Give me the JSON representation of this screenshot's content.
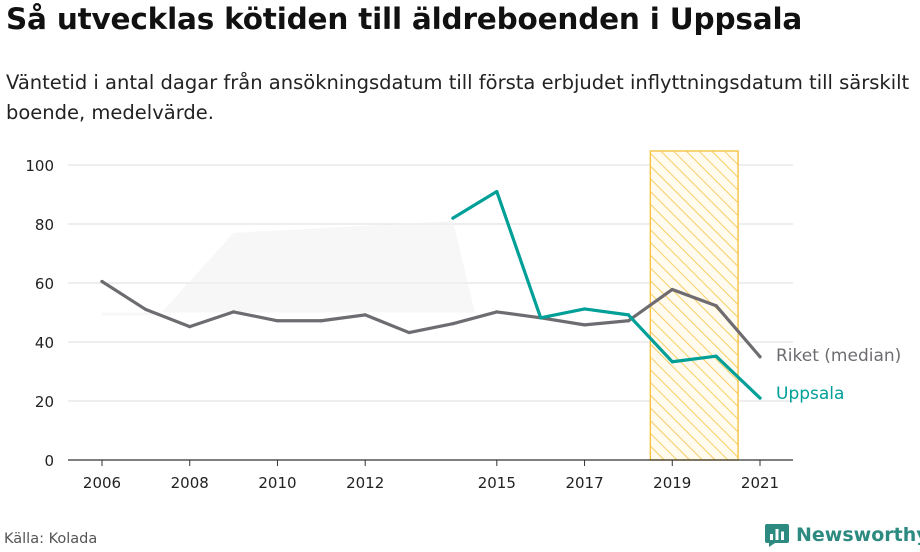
{
  "header": {
    "title": "Så utvecklas kötiden till äldreboenden i Uppsala",
    "subtitle": "Väntetid i antal dagar från ansökningsdatum till första erbjudet inflyttningsdatum till särskilt boende, medelvärde."
  },
  "footer": {
    "source": "Källa: Kolada",
    "brand": "Newsworthy",
    "brand_icon": "newsworthy-logo-icon",
    "brand_color": "#2c8a80"
  },
  "chart_data": {
    "type": "line",
    "x_tick_labels": [
      "2006",
      "2008",
      "2010",
      "2012",
      "2015",
      "2017",
      "2019",
      "2021"
    ],
    "y_tick_labels": [
      "0",
      "20",
      "40",
      "60",
      "80",
      "100"
    ],
    "ylim": [
      0,
      100
    ],
    "grid": true,
    "series": [
      {
        "name": "Riket (median)",
        "color": "#6e6c70",
        "points": [
          [
            2006,
            60.5
          ],
          [
            2007,
            51
          ],
          [
            2008,
            45.2
          ],
          [
            2009,
            50.2
          ],
          [
            2010,
            47.2
          ],
          [
            2011,
            47.2
          ],
          [
            2012,
            49.2
          ],
          [
            2013,
            43.2
          ],
          [
            2014,
            46.2
          ],
          [
            2015,
            50.2
          ],
          [
            2016,
            48.2
          ],
          [
            2017,
            45.8
          ],
          [
            2018,
            47.2
          ],
          [
            2019,
            57.8
          ],
          [
            2020,
            52.3
          ],
          [
            2021,
            35
          ]
        ]
      },
      {
        "name": "Uppsala",
        "color": "#00a098",
        "points": [
          [
            2014,
            82
          ],
          [
            2015,
            91
          ],
          [
            2016,
            48.2
          ],
          [
            2017,
            51.2
          ],
          [
            2018,
            49.2
          ],
          [
            2019,
            33.3
          ],
          [
            2020,
            35.2
          ],
          [
            2021,
            21
          ]
        ]
      }
    ],
    "highlight_band": {
      "x_range": [
        2018.5,
        2020.5
      ],
      "color": "#f6c342",
      "pattern": "diagonal-hatch"
    }
  }
}
